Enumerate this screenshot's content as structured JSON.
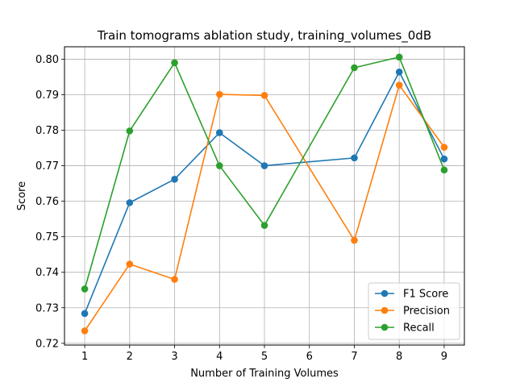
{
  "chart_data": {
    "type": "line",
    "title": "Train tomograms ablation study, training_volumes_0dB",
    "xlabel": "Number of Training Volumes",
    "ylabel": "Score",
    "x": [
      1,
      2,
      3,
      4,
      5,
      7,
      8,
      9
    ],
    "xticks": [
      1,
      2,
      3,
      4,
      5,
      6,
      7,
      8,
      9
    ],
    "xlim": [
      0.55,
      9.45
    ],
    "ylim": [
      0.7195,
      0.8035
    ],
    "yticks": [
      0.72,
      0.73,
      0.74,
      0.75,
      0.76,
      0.77,
      0.78,
      0.79,
      0.8
    ],
    "ytick_labels": [
      "0.72",
      "0.73",
      "0.74",
      "0.75",
      "0.76",
      "0.77",
      "0.78",
      "0.79",
      "0.80"
    ],
    "grid": true,
    "legend_position": "lower-right",
    "series": [
      {
        "name": "F1 Score",
        "color": "#1f77b4",
        "values": [
          0.7284,
          0.7596,
          0.7662,
          0.7793,
          0.77,
          0.7722,
          0.7964,
          0.7719
        ]
      },
      {
        "name": "Precision",
        "color": "#ff7f0e",
        "values": [
          0.7235,
          0.7423,
          0.738,
          0.7901,
          0.7898,
          0.749,
          0.7927,
          0.7752
        ]
      },
      {
        "name": "Recall",
        "color": "#2ca02c",
        "values": [
          0.7353,
          0.7798,
          0.799,
          0.77,
          0.7532,
          0.7976,
          0.8006,
          0.7688
        ]
      }
    ]
  }
}
